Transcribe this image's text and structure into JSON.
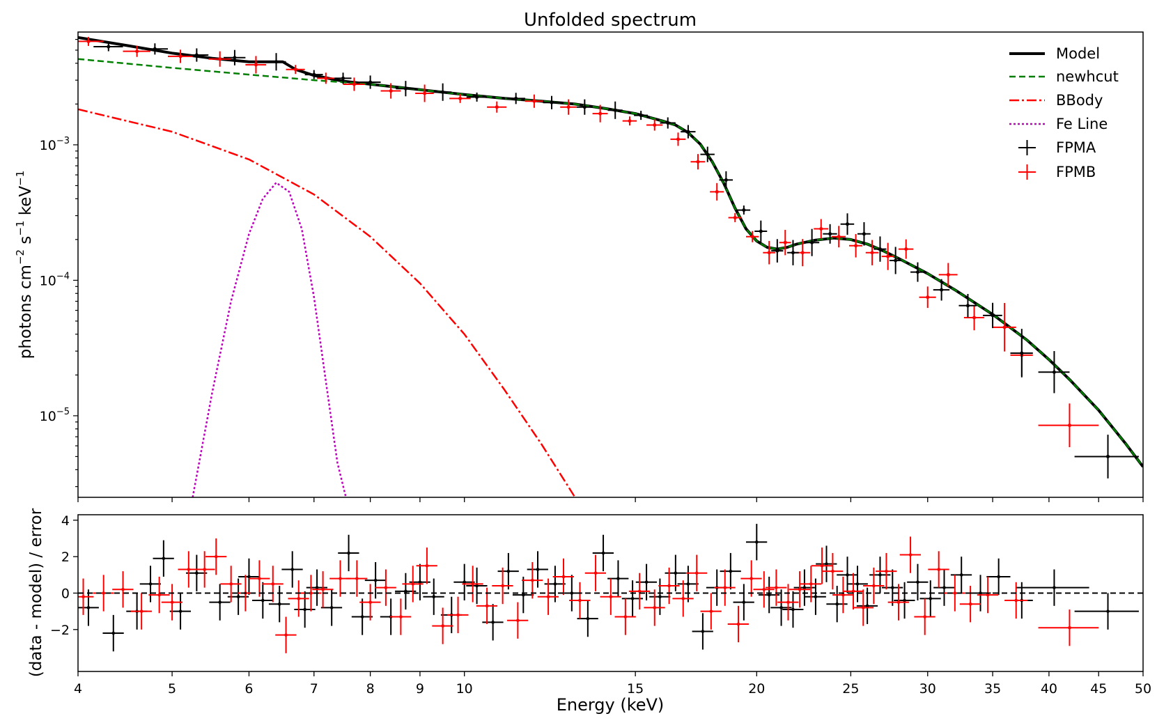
{
  "chart_data": [
    {
      "type": "scatter",
      "title": "Unfolded spectrum",
      "xlabel": "Energy (keV)",
      "ylabel": "photons cm^-2 s^-1 keV^-1",
      "ylabel_parts": {
        "base1": "photons cm",
        "exp1": "−2",
        "base2": " s",
        "exp2": "−1",
        "base3": " keV",
        "exp3": "−1"
      },
      "xscale": "log",
      "yscale": "log",
      "xlim": [
        4,
        50
      ],
      "ylim": [
        2.5e-06,
        0.0068
      ],
      "xticks": [
        4,
        5,
        6,
        7,
        8,
        9,
        10,
        15,
        20,
        25,
        30,
        35,
        40,
        45,
        50
      ],
      "yticks": [
        {
          "value": 0.001,
          "base": "10",
          "exp": "−3"
        },
        {
          "value": 0.0001,
          "base": "10",
          "exp": "−4"
        },
        {
          "value": 1e-05,
          "base": "10",
          "exp": "−5"
        }
      ],
      "legend_position": "top-right",
      "legend": [
        {
          "label": "Model",
          "style": "solid",
          "color": "#000000"
        },
        {
          "label": "newhcut",
          "style": "dashed",
          "color": "#008000"
        },
        {
          "label": "BBody",
          "style": "dashdot",
          "color": "#ff0000"
        },
        {
          "label": "Fe Line",
          "style": "dotted",
          "color": "#bf00bf"
        },
        {
          "label": "FPMA",
          "style": "errorbar",
          "color": "#000000"
        },
        {
          "label": "FPMB",
          "style": "errorbar",
          "color": "#ff0000"
        }
      ],
      "series": [
        {
          "name": "Model",
          "color": "#000000",
          "x": [
            4,
            4.5,
            5,
            5.5,
            6,
            6.3,
            6.5,
            6.7,
            7,
            7.5,
            8,
            9,
            10,
            11,
            12,
            13,
            14,
            15,
            16,
            16.5,
            17,
            17.5,
            18,
            18.5,
            19,
            19.5,
            20,
            20.5,
            21,
            21.5,
            22,
            23,
            24,
            25,
            26,
            27,
            28,
            30,
            32,
            35,
            38,
            40,
            42,
            45,
            48,
            50
          ],
          "y": [
            0.0062,
            0.0054,
            0.00475,
            0.00435,
            0.0041,
            0.0041,
            0.0041,
            0.0036,
            0.00325,
            0.00295,
            0.0028,
            0.00255,
            0.00235,
            0.0022,
            0.0021,
            0.002,
            0.00185,
            0.0017,
            0.0015,
            0.0014,
            0.00123,
            0.00101,
            0.00075,
            0.00052,
            0.00034,
            0.00024,
            0.000195,
            0.000175,
            0.00017,
            0.000175,
            0.000185,
            0.000198,
            0.000205,
            0.0002,
            0.000185,
            0.000165,
            0.000145,
            0.000112,
            8.5e-05,
            5.6e-05,
            3.6e-05,
            2.6e-05,
            1.85e-05,
            1.1e-05,
            6.2e-06,
            4.2e-06
          ]
        },
        {
          "name": "newhcut",
          "color": "#008000",
          "x": [
            4,
            5,
            6,
            7,
            8,
            9,
            10,
            11,
            12,
            13,
            14,
            15,
            16,
            16.5,
            17,
            17.5,
            18,
            18.5,
            19,
            19.5,
            20,
            20.5,
            21,
            21.5,
            22,
            23,
            24,
            25,
            26,
            27,
            28,
            30,
            32,
            35,
            38,
            40,
            42,
            45,
            48,
            50
          ],
          "y": [
            0.0043,
            0.0037,
            0.0033,
            0.003,
            0.0028,
            0.00255,
            0.00235,
            0.0022,
            0.0021,
            0.002,
            0.00185,
            0.0017,
            0.0015,
            0.0014,
            0.00123,
            0.00101,
            0.00075,
            0.00052,
            0.00034,
            0.00024,
            0.000195,
            0.000175,
            0.00017,
            0.000175,
            0.000185,
            0.000198,
            0.000205,
            0.0002,
            0.000185,
            0.000165,
            0.000145,
            0.000112,
            8.5e-05,
            5.6e-05,
            3.6e-05,
            2.6e-05,
            1.85e-05,
            1.1e-05,
            6.2e-06,
            4.2e-06
          ]
        },
        {
          "name": "BBody",
          "color": "#ff0000",
          "x": [
            4,
            5,
            6,
            7,
            8,
            9,
            10,
            11,
            12,
            13
          ],
          "y": [
            0.00183,
            0.00125,
            0.00078,
            0.00043,
            0.00021,
            9.5e-05,
            4e-05,
            1.55e-05,
            6.2e-06,
            2.5e-06
          ]
        },
        {
          "name": "Fe Line",
          "color": "#bf00bf",
          "x": [
            5.25,
            5.5,
            5.75,
            6.0,
            6.2,
            6.4,
            6.6,
            6.8,
            7.0,
            7.2,
            7.4,
            7.55
          ],
          "y": [
            2.5e-06,
            1.5e-05,
            7e-05,
            0.00022,
            0.0004,
            0.000525,
            0.00045,
            0.00024,
            7.5e-05,
            1.8e-05,
            4.5e-06,
            2.5e-06
          ]
        },
        {
          "name": "FPMA",
          "color": "#000000",
          "x": [
            4.3,
            4.8,
            5.3,
            5.8,
            6.4,
            7.0,
            7.5,
            8.0,
            8.7,
            9.5,
            10.3,
            11.3,
            12.3,
            13.3,
            14.3,
            15.2,
            16.2,
            17.0,
            17.8,
            18.6,
            19.4,
            20.2,
            21.0,
            21.8,
            22.8,
            23.8,
            24.8,
            25.8,
            26.8,
            27.8,
            29.3,
            31.0,
            33.0,
            35.0,
            37.5,
            40.5,
            46.0
          ],
          "y": [
            0.0053,
            0.0051,
            0.0046,
            0.0044,
            0.0041,
            0.0033,
            0.0031,
            0.0029,
            0.0026,
            0.00245,
            0.00225,
            0.0022,
            0.00205,
            0.0019,
            0.0018,
            0.00165,
            0.00145,
            0.00125,
            0.00085,
            0.00055,
            0.00033,
            0.00023,
            0.000165,
            0.00016,
            0.00019,
            0.00022,
            0.00026,
            0.00022,
            0.00017,
            0.00014,
            0.000115,
            8.5e-05,
            6.5e-05,
            5.5e-05,
            2.9e-05,
            2.1e-05,
            5e-06
          ],
          "xerr": [
            0.15,
            0.15,
            0.15,
            0.15,
            0.15,
            0.15,
            0.15,
            0.2,
            0.2,
            0.2,
            0.25,
            0.25,
            0.25,
            0.25,
            0.25,
            0.25,
            0.3,
            0.3,
            0.3,
            0.3,
            0.3,
            0.3,
            0.3,
            0.3,
            0.4,
            0.4,
            0.4,
            0.4,
            0.4,
            0.4,
            0.5,
            0.6,
            0.7,
            0.8,
            1.0,
            1.5,
            3.5
          ]
        },
        {
          "name": "FPMB",
          "color": "#ff0000",
          "x": [
            4.1,
            4.6,
            5.1,
            5.6,
            6.1,
            6.7,
            7.2,
            7.7,
            8.4,
            9.1,
            9.9,
            10.8,
            11.8,
            12.8,
            13.8,
            14.8,
            15.7,
            16.6,
            17.4,
            18.2,
            19.0,
            19.8,
            20.6,
            21.4,
            22.3,
            23.3,
            24.3,
            25.3,
            26.3,
            27.3,
            28.5,
            30.0,
            31.5,
            33.5,
            36.0,
            37.5,
            42.0
          ],
          "y": [
            0.0058,
            0.0049,
            0.0045,
            0.0043,
            0.0039,
            0.0036,
            0.0031,
            0.0028,
            0.0025,
            0.0024,
            0.0022,
            0.0019,
            0.0021,
            0.0019,
            0.0017,
            0.0015,
            0.0014,
            0.0011,
            0.00075,
            0.00045,
            0.00029,
            0.00021,
            0.00016,
            0.00019,
            0.00016,
            0.00024,
            0.00021,
            0.00018,
            0.00016,
            0.00015,
            0.00017,
            7.5e-05,
            0.00011,
            5.3e-05,
            4.5e-05,
            2.8e-05,
            8.5e-06
          ],
          "xerr": [
            0.15,
            0.15,
            0.15,
            0.15,
            0.15,
            0.15,
            0.15,
            0.2,
            0.2,
            0.2,
            0.25,
            0.25,
            0.25,
            0.25,
            0.25,
            0.25,
            0.3,
            0.3,
            0.3,
            0.3,
            0.3,
            0.3,
            0.3,
            0.3,
            0.4,
            0.4,
            0.4,
            0.4,
            0.4,
            0.4,
            0.5,
            0.6,
            0.7,
            0.8,
            1.0,
            1.0,
            3.0
          ]
        }
      ]
    },
    {
      "type": "scatter",
      "title": "",
      "xlabel": "Energy (keV)",
      "ylabel": "(data - model) / error",
      "xscale": "log",
      "xlim": [
        4,
        50
      ],
      "ylim": [
        -4.3,
        4.3
      ],
      "xticks": [
        4,
        5,
        6,
        7,
        8,
        9,
        10,
        15,
        20,
        25,
        30,
        35,
        40,
        45,
        50
      ],
      "yticks": [
        -2,
        0,
        2,
        4
      ],
      "reference_line": {
        "y": 0,
        "style": "dashed",
        "color": "#000000"
      },
      "series": [
        {
          "name": "FPMA",
          "color": "#000000",
          "x": [
            4.1,
            4.35,
            4.6,
            4.75,
            4.9,
            5.1,
            5.3,
            5.6,
            5.85,
            6.0,
            6.2,
            6.45,
            6.65,
            6.85,
            7.05,
            7.3,
            7.6,
            7.85,
            8.1,
            8.4,
            8.7,
            9.0,
            9.3,
            9.7,
            10.0,
            10.3,
            10.7,
            11.1,
            11.5,
            11.9,
            12.4,
            12.9,
            13.4,
            13.9,
            14.4,
            14.9,
            15.4,
            15.9,
            16.5,
            17.0,
            17.6,
            18.2,
            18.8,
            19.4,
            20.0,
            20.6,
            21.2,
            21.8,
            22.4,
            23.0,
            23.6,
            24.2,
            24.8,
            25.4,
            26.0,
            26.8,
            27.6,
            28.4,
            29.3,
            30.2,
            31.2,
            32.5,
            34.0,
            35.5,
            37.5,
            40.5,
            46.0
          ],
          "y": [
            -0.8,
            -2.2,
            -1.0,
            0.5,
            1.9,
            -1.0,
            1.1,
            -0.5,
            -0.2,
            0.9,
            -0.4,
            -0.6,
            1.3,
            -0.9,
            0.3,
            -0.8,
            2.2,
            -1.3,
            0.7,
            -1.3,
            0.1,
            0.6,
            -0.2,
            -1.2,
            0.6,
            0.4,
            -1.6,
            1.2,
            -0.1,
            1.3,
            0.5,
            0.0,
            -1.4,
            2.2,
            0.8,
            -0.3,
            0.6,
            -0.2,
            1.1,
            0.5,
            -2.1,
            0.3,
            1.2,
            -0.5,
            2.8,
            -0.1,
            -0.8,
            -0.9,
            0.3,
            -0.2,
            1.6,
            -0.6,
            1.0,
            0.5,
            -0.7,
            1.0,
            0.3,
            -0.4,
            0.6,
            -0.3,
            0.3,
            1.0,
            0.0,
            0.9,
            -0.4,
            0.3,
            -1.0
          ]
        },
        {
          "name": "FPMB",
          "color": "#ff0000",
          "x": [
            4.05,
            4.25,
            4.45,
            4.65,
            4.85,
            5.0,
            5.2,
            5.4,
            5.55,
            5.75,
            5.95,
            6.15,
            6.35,
            6.55,
            6.75,
            6.95,
            7.15,
            7.45,
            7.75,
            8.0,
            8.3,
            8.6,
            8.85,
            9.15,
            9.5,
            9.85,
            10.2,
            10.55,
            10.95,
            11.35,
            11.75,
            12.2,
            12.65,
            13.15,
            13.65,
            14.15,
            14.65,
            15.15,
            15.7,
            16.25,
            16.8,
            17.35,
            17.95,
            18.55,
            19.15,
            19.75,
            20.35,
            20.95,
            21.55,
            22.15,
            22.75,
            23.35,
            23.95,
            24.55,
            25.15,
            25.75,
            26.4,
            27.2,
            28.0,
            28.8,
            29.8,
            30.8,
            32.0,
            33.2,
            34.6,
            37.0,
            42.0
          ],
          "y": [
            -0.2,
            0.0,
            0.2,
            -1.0,
            -0.1,
            -0.5,
            1.3,
            1.3,
            2.0,
            0.5,
            0.0,
            0.8,
            0.5,
            -2.3,
            -0.3,
            0.0,
            0.2,
            0.8,
            0.8,
            -0.5,
            0.3,
            -1.3,
            0.5,
            1.5,
            -1.8,
            -1.2,
            0.5,
            -0.7,
            0.4,
            -1.5,
            0.7,
            -0.2,
            0.9,
            -0.4,
            1.1,
            -0.2,
            -1.3,
            0.1,
            -0.8,
            0.4,
            -0.3,
            1.1,
            -1.0,
            0.3,
            -1.7,
            0.8,
            0.2,
            0.3,
            -0.5,
            0.2,
            0.5,
            1.5,
            1.2,
            -0.1,
            0.1,
            -0.8,
            0.4,
            1.2,
            -0.5,
            2.1,
            -1.3,
            1.3,
            0.0,
            -0.6,
            -0.1,
            -0.4,
            -1.9
          ]
        }
      ]
    }
  ]
}
